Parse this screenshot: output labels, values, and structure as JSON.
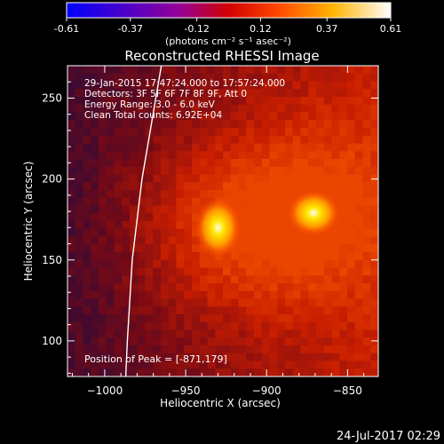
{
  "chart_data": {
    "type": "heatmap",
    "title": "Reconstructed RHESSI Image",
    "colorbar": {
      "ticks": [
        "-0.61",
        "-0.37",
        "-0.12",
        "0.12",
        "0.37",
        "0.61"
      ],
      "min": -0.61,
      "max": 0.61,
      "unit_label": "(photons cm⁻² s⁻¹ asec⁻²)"
    },
    "xlabel": "Heliocentric X (arcsec)",
    "ylabel": "Heliocentric Y (arcsec)",
    "xlim": [
      -1023,
      -831
    ],
    "ylim": [
      78,
      270
    ],
    "xticks": [
      {
        "value": -1000,
        "label": "−1000"
      },
      {
        "value": -950,
        "label": "−950"
      },
      {
        "value": -900,
        "label": "−900"
      },
      {
        "value": -850,
        "label": "−850"
      }
    ],
    "yticks": [
      {
        "value": 100,
        "label": "100"
      },
      {
        "value": 150,
        "label": "150"
      },
      {
        "value": 200,
        "label": "200"
      },
      {
        "value": 250,
        "label": "250"
      }
    ],
    "annotations": [
      "29-Jan-2015 17:47:24.000 to 17:57:24.000",
      "Detectors: 3F 5F 6F 7F 8F 9F, Att 0",
      "Energy Range: 3.0 - 6.0 keV",
      "Clean     Total counts: 6.92E+04"
    ],
    "peak_text": "Position of Peak = [-871,179]",
    "sources": [
      {
        "x": -871,
        "y": 179,
        "value": 0.61
      },
      {
        "x": -930,
        "y": 170,
        "value": 0.55
      }
    ],
    "limb_curve": [
      {
        "x": -965,
        "y": 270
      },
      {
        "x": -977,
        "y": 200
      },
      {
        "x": -983,
        "y": 150
      },
      {
        "x": -986,
        "y": 100
      },
      {
        "x": -987,
        "y": 78
      }
    ]
  },
  "footer": {
    "timestamp": "24-Jul-2017 02:29"
  },
  "colors": {
    "background": "#000000",
    "text": "#ffffff"
  }
}
